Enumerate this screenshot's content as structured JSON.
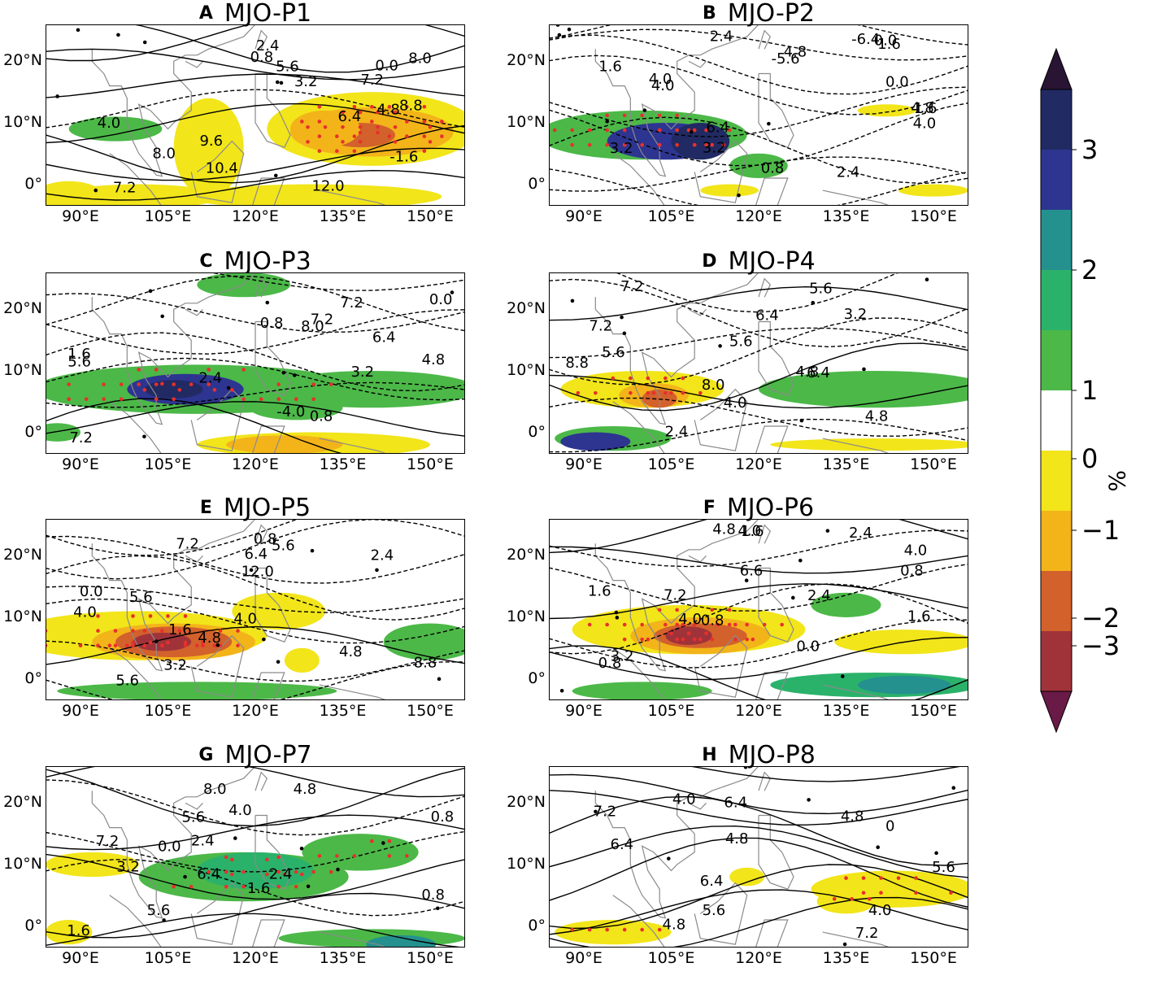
{
  "panels": [
    {
      "id": "A",
      "letter": "A",
      "title": "MJO-P1"
    },
    {
      "id": "B",
      "letter": "B",
      "title": "MJO-P2"
    },
    {
      "id": "C",
      "letter": "C",
      "title": "MJO-P3"
    },
    {
      "id": "D",
      "letter": "D",
      "title": "MJO-P4"
    },
    {
      "id": "E",
      "letter": "E",
      "title": "MJO-P5"
    },
    {
      "id": "F",
      "letter": "F",
      "title": "MJO-P6"
    },
    {
      "id": "G",
      "letter": "G",
      "title": "MJO-P7"
    },
    {
      "id": "H",
      "letter": "H",
      "title": "MJO-P8"
    }
  ],
  "axes": {
    "lat_ticks": [
      "20°N",
      "10°N",
      "0°"
    ],
    "lon_ticks": [
      "90°E",
      "105°E",
      "120°E",
      "135°E",
      "150°E"
    ]
  },
  "colorbar": {
    "unit": "%",
    "tick_labels": [
      "3",
      "2",
      "1",
      "0",
      "−1",
      "−2",
      "−3"
    ],
    "colors": [
      "#2a1433",
      "#212a63",
      "#2d3590",
      "#24918f",
      "#2bb26a",
      "#4cb848",
      "#ffffff",
      "#f2e51a",
      "#f3b41a",
      "#d3612c",
      "#a0333a",
      "#6a1a46"
    ]
  },
  "contour_labels": {
    "A": [
      "8.0",
      "7.2",
      "8.8",
      "9.6",
      "10.4",
      "12.0",
      "5.6",
      "4.8",
      "4.0",
      "-1.6",
      "2.4",
      "0.8",
      "3.2",
      "6.4",
      "8.0",
      "7.2",
      "0.0"
    ],
    "B": [
      "1.6",
      "4.0",
      "1.6",
      "3.2",
      "0.8",
      "0.0",
      "-5.6",
      "4.8",
      "4.0",
      "2.4",
      "-6.4",
      "4.8",
      "4.0",
      "6.4",
      "3.2",
      "2.4",
      "1.6",
      "0.0"
    ],
    "C": [
      "7.2",
      "8.0",
      "4.8",
      "2.4",
      "0.8",
      "0.0",
      "0.8",
      "1.6",
      "3.2",
      "-4.0",
      "7.2",
      "7.2",
      "6.4",
      "5.6"
    ],
    "D": [
      "5.6",
      "7.2",
      "8.8",
      "8.0",
      "4.8",
      "7.2",
      "6.4",
      "5.6",
      "4.8",
      "4.0",
      "2.4",
      "3.2",
      "5.6",
      "6.4"
    ],
    "E": [
      "5.6",
      "12.0",
      "4.0",
      "4.8",
      "8.8",
      "7.2",
      "6.4",
      "5.6",
      "4.0",
      "3.2",
      "0.8",
      "2.4",
      "0.0",
      "1.6",
      "4.8",
      "5.6"
    ],
    "F": [
      "1.6",
      "0.8",
      "1.6",
      "0.8",
      "0.8",
      "4.0",
      "6.6",
      "7.2",
      "4.0",
      "3.2",
      "2.4",
      "4.0",
      "2.4",
      "1.6",
      "0.0",
      "4.8"
    ],
    "G": [
      "8.0",
      "5.6",
      "7.2",
      "6.4",
      "5.6",
      "4.8",
      "4.0",
      "2.4",
      "3.2",
      "0.8",
      "1.6",
      "0.8",
      "0.0",
      "2.4",
      "1.6"
    ],
    "H": [
      "4.0",
      "4.8",
      "6.4",
      "6.4",
      "5.6",
      "7.2",
      "6.4",
      "4.8",
      "5.6",
      "4.0",
      "4.8",
      "7.2",
      "0"
    ]
  }
}
